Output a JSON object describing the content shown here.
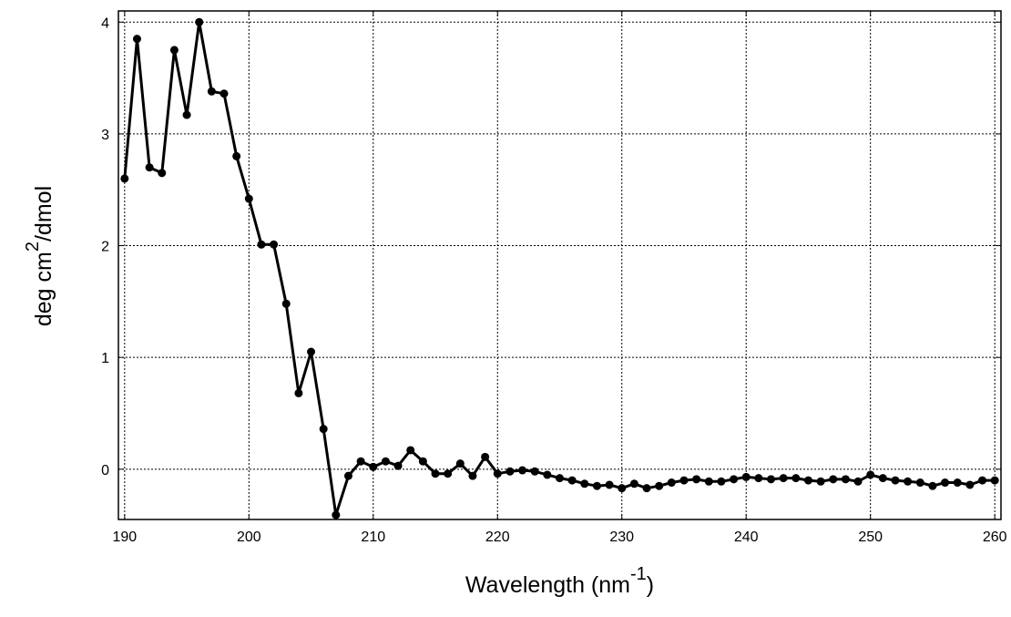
{
  "chart_data": {
    "type": "line",
    "title": "",
    "xlabel": {
      "base": "Wavelength (nm",
      "superscript": "-1",
      "suffix": ")"
    },
    "ylabel": {
      "base": "deg cm",
      "superscript": "2",
      "suffix": "/dmol"
    },
    "xlim": [
      189.5,
      260.5
    ],
    "ylim": [
      -0.45,
      4.1
    ],
    "xticks": [
      190,
      200,
      210,
      220,
      230,
      240,
      250,
      260
    ],
    "yticks": [
      0,
      1,
      2,
      3,
      4
    ],
    "grid": true,
    "colors": {
      "line": "#000000",
      "grid": "#000000",
      "background": "#ffffff"
    },
    "series": [
      {
        "x": [
          190,
          191,
          192,
          193,
          194,
          195,
          196,
          197,
          198,
          199,
          200,
          201,
          202,
          203,
          204,
          205,
          206,
          207,
          208,
          209,
          210,
          211,
          212,
          213,
          214,
          215,
          216,
          217,
          218,
          219,
          220,
          221,
          222,
          223,
          224,
          225,
          226,
          227,
          228,
          229,
          230,
          231,
          232,
          233,
          234,
          235,
          236,
          237,
          238,
          239,
          240,
          241,
          242,
          243,
          244,
          245,
          246,
          247,
          248,
          249,
          250,
          251,
          252,
          253,
          254,
          255,
          256,
          257,
          258,
          259,
          260
        ],
        "y": [
          2.6,
          3.85,
          2.7,
          2.65,
          3.75,
          3.17,
          4.0,
          3.38,
          3.36,
          2.8,
          2.42,
          2.01,
          2.01,
          1.48,
          0.68,
          1.05,
          0.36,
          -0.41,
          -0.06,
          0.07,
          0.02,
          0.07,
          0.03,
          0.17,
          0.07,
          -0.04,
          -0.04,
          0.05,
          -0.06,
          0.11,
          -0.04,
          -0.02,
          -0.01,
          -0.02,
          -0.05,
          -0.08,
          -0.1,
          -0.13,
          -0.15,
          -0.14,
          -0.17,
          -0.13,
          -0.17,
          -0.15,
          -0.12,
          -0.1,
          -0.09,
          -0.11,
          -0.11,
          -0.09,
          -0.07,
          -0.08,
          -0.09,
          -0.08,
          -0.08,
          -0.1,
          -0.11,
          -0.09,
          -0.09,
          -0.11,
          -0.05,
          -0.08,
          -0.1,
          -0.11,
          -0.12,
          -0.15,
          -0.12,
          -0.12,
          -0.14,
          -0.1,
          -0.1
        ]
      }
    ]
  }
}
